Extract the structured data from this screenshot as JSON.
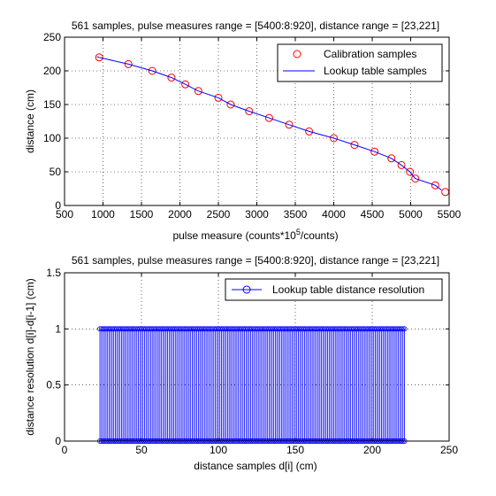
{
  "chart_data": [
    {
      "type": "line",
      "title": "561 samples, pulse measures range = [5400:8:920], distance range = [23,221]",
      "xlabel_prefix": "pulse measure (counts*10",
      "xlabel_sup": "5",
      "xlabel_suffix": "/counts)",
      "ylabel": "distance (cm)",
      "xlim": [
        500,
        5500
      ],
      "ylim": [
        0,
        250
      ],
      "xticks": [
        500,
        1000,
        1500,
        2000,
        2500,
        3000,
        3500,
        4000,
        4500,
        5000,
        5500
      ],
      "yticks": [
        0,
        50,
        100,
        150,
        200,
        250
      ],
      "grid": true,
      "legend_position": "top-right",
      "series": [
        {
          "name": "Calibration samples",
          "style": "circles",
          "color": "#ff0000",
          "x": [
            950,
            1330,
            1640,
            1890,
            2070,
            2240,
            2500,
            2660,
            2900,
            3160,
            3420,
            3680,
            4000,
            4270,
            4530,
            4750,
            4880,
            4990,
            5060,
            5320,
            5450
          ],
          "y": [
            220,
            210,
            200,
            190,
            180,
            170,
            160,
            150,
            140,
            130,
            120,
            110,
            100,
            90,
            80,
            70,
            60,
            50,
            40,
            30,
            20
          ]
        },
        {
          "name": "Lookup table samples",
          "style": "line",
          "color": "#0000ff",
          "x": [
            920,
            950,
            1330,
            1640,
            1890,
            2070,
            2240,
            2500,
            2660,
            2900,
            3160,
            3420,
            3680,
            4000,
            4270,
            4530,
            4750,
            4880,
            4990,
            5060,
            5320,
            5400
          ],
          "y": [
            221,
            220,
            210,
            200,
            190,
            180,
            170,
            160,
            150,
            140,
            130,
            120,
            110,
            100,
            90,
            80,
            70,
            60,
            50,
            40,
            30,
            23
          ]
        }
      ]
    },
    {
      "type": "line",
      "title": "561 samples, pulse measures range = [5400:8:920], distance range = [23,221]",
      "xlabel": "distance samples d[i] (cm)",
      "ylabel": "distance resolution d[i]-d[i-1] (cm)",
      "xlim": [
        0,
        250
      ],
      "ylim": [
        0,
        1.5
      ],
      "xticks": [
        0,
        50,
        100,
        150,
        200,
        250
      ],
      "yticks": [
        0,
        0.5,
        1,
        1.5
      ],
      "ytick_labels": [
        "0",
        "0.5",
        "1",
        "1.5"
      ],
      "grid": true,
      "legend_position": "top-right",
      "series": [
        {
          "name": "Lookup table distance resolution",
          "style": "stem-circles",
          "color": "#0000ff",
          "x_start": 23,
          "x_end": 221,
          "x_step": 1,
          "y": 1
        }
      ]
    }
  ]
}
